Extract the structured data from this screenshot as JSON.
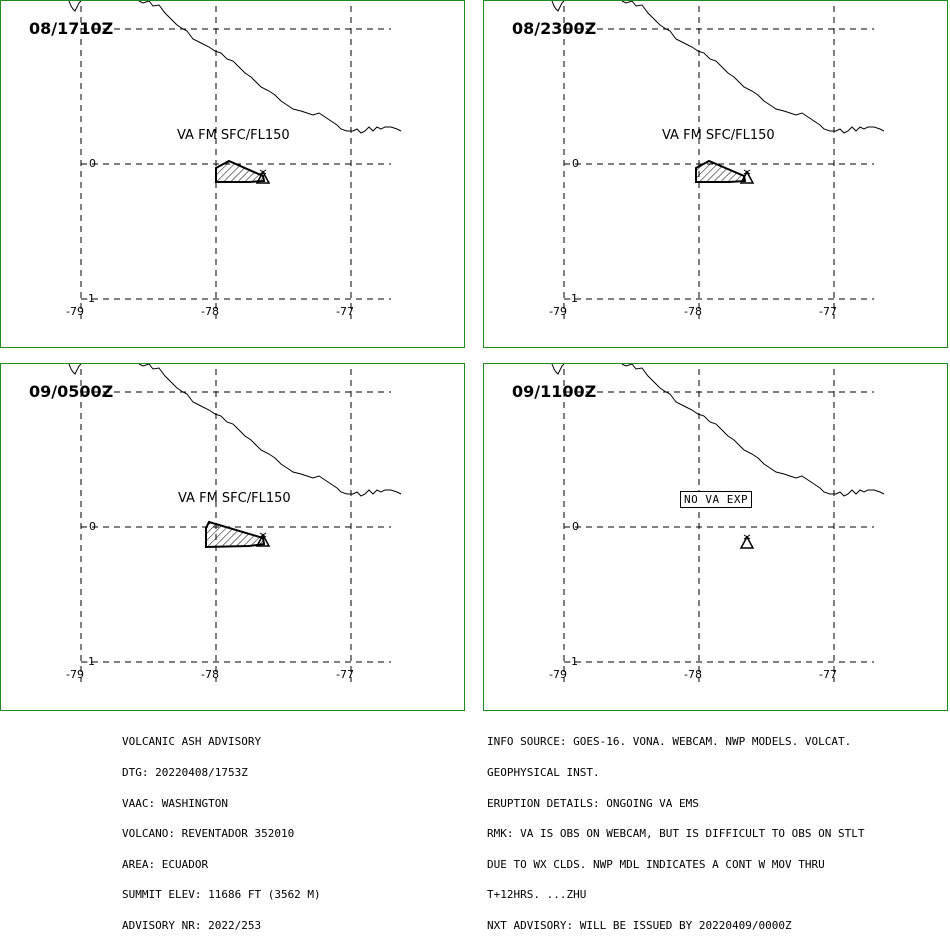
{
  "panels": [
    {
      "time": "08/1710Z",
      "label": "VA FM SFC/FL150",
      "label_boxed": false,
      "has_ash": true
    },
    {
      "time": "08/2300Z",
      "label": "VA FM SFC/FL150",
      "label_boxed": false,
      "has_ash": true
    },
    {
      "time": "09/0500Z",
      "label": "VA FM SFC/FL150",
      "label_boxed": false,
      "has_ash": true
    },
    {
      "time": "09/1100Z",
      "label": "NO VA EXP",
      "label_boxed": true,
      "has_ash": false
    }
  ],
  "axes": {
    "x_ticks": [
      "-79",
      "-78",
      "-77"
    ],
    "y_ticks": [
      "0",
      "-1"
    ]
  },
  "colors": {
    "panel_border": "#1e8c1e",
    "lines": "#000000"
  },
  "volcano_icon": "volcano-triangle-icon",
  "advisory_left": [
    "VOLCANIC ASH ADVISORY",
    "DTG: 20220408/1753Z",
    "VAAC: WASHINGTON",
    "VOLCANO: REVENTADOR 352010",
    "AREA: ECUADOR",
    "SUMMIT ELEV: 11686 FT (3562 M)",
    "ADVISORY NR: 2022/253"
  ],
  "advisory_right": [
    "INFO SOURCE: GOES-16. VONA. WEBCAM. NWP MODELS. VOLCAT.",
    "GEOPHYSICAL INST.",
    "ERUPTION DETAILS: ONGOING VA EMS",
    "RMK: VA IS OBS ON WEBCAM, BUT IS DIFFICULT TO OBS ON STLT",
    "DUE TO WX CLDS. NWP MDL INDICATES A CONT W MOV THRU",
    "T+12HRS. ...ZHU",
    "NXT ADVISORY: WILL BE ISSUED BY 20220409/0000Z"
  ]
}
